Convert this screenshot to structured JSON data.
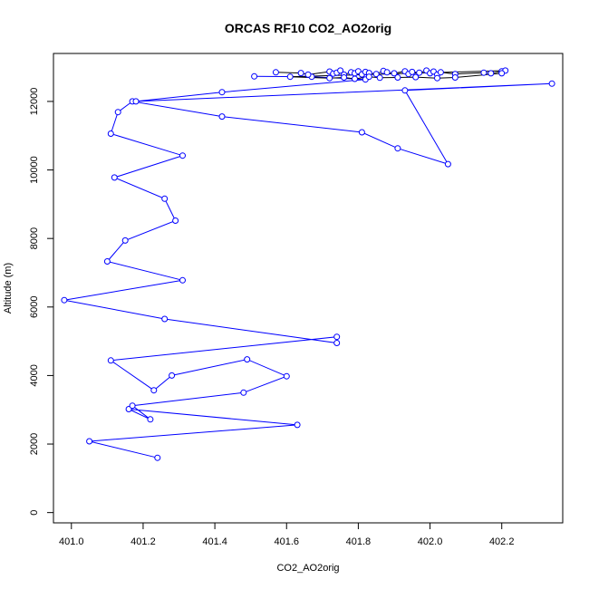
{
  "chart_data": {
    "type": "line",
    "title": "ORCAS RF10 CO2_AO2orig",
    "xlabel": "CO2_AO2orig",
    "ylabel": "Altitude (m)",
    "xlim": [
      400.95,
      402.37
    ],
    "ylim": [
      -300,
      13400
    ],
    "xticks": [
      "401.0",
      "401.2",
      "401.4",
      "401.6",
      "401.8",
      "402.0",
      "402.2"
    ],
    "yticks": [
      "0",
      "2000",
      "4000",
      "6000",
      "8000",
      "10000",
      "12000"
    ],
    "grid": false,
    "markers": "open-circle",
    "series": [
      {
        "color": "#0000ff",
        "x": [
          401.24,
          401.05,
          401.63,
          401.16,
          401.22,
          401.17,
          401.48,
          401.6,
          401.49,
          401.28,
          401.23,
          401.11,
          401.74,
          401.74,
          401.26,
          400.98,
          401.31,
          401.1,
          401.15,
          401.29,
          401.26,
          401.12,
          401.31,
          401.11,
          401.13,
          401.17,
          401.42,
          401.81,
          401.91,
          402.05,
          401.93,
          402.34,
          401.18,
          401.42,
          401.82,
          401.67,
          401.51
        ],
        "y": [
          1600,
          2080,
          2560,
          3020,
          2720,
          3120,
          3500,
          3980,
          4470,
          4000,
          3570,
          4440,
          5130,
          4950,
          5650,
          6200,
          6780,
          7330,
          7940,
          8520,
          9160,
          9780,
          10420,
          11060,
          11690,
          12000,
          11560,
          11100,
          10630,
          10170,
          12320,
          12520,
          12000,
          12270,
          12640,
          12720,
          12730
        ]
      },
      {
        "color": "#000000",
        "x": [
          401.57,
          401.64,
          401.66,
          401.72,
          401.73,
          401.74,
          401.75,
          401.76,
          401.78,
          401.79,
          401.8,
          401.81,
          401.82,
          401.83,
          401.85,
          401.87,
          401.88,
          401.9,
          401.93,
          401.94,
          401.95,
          401.97,
          401.99,
          402.0,
          402.01,
          402.02,
          402.03,
          402.07,
          402.15,
          402.17,
          402.2,
          402.21,
          401.61,
          401.72,
          401.76,
          401.79,
          401.83,
          401.86,
          401.91,
          401.96,
          402.02,
          402.07,
          402.2
        ],
        "y": [
          12850,
          12830,
          12780,
          12870,
          12810,
          12840,
          12900,
          12780,
          12850,
          12820,
          12880,
          12790,
          12860,
          12830,
          12800,
          12890,
          12850,
          12820,
          12880,
          12800,
          12860,
          12840,
          12900,
          12820,
          12870,
          12780,
          12850,
          12800,
          12840,
          12820,
          12880,
          12900,
          12720,
          12680,
          12700,
          12660,
          12720,
          12690,
          12700,
          12710,
          12680,
          12700,
          12820
        ]
      }
    ]
  }
}
